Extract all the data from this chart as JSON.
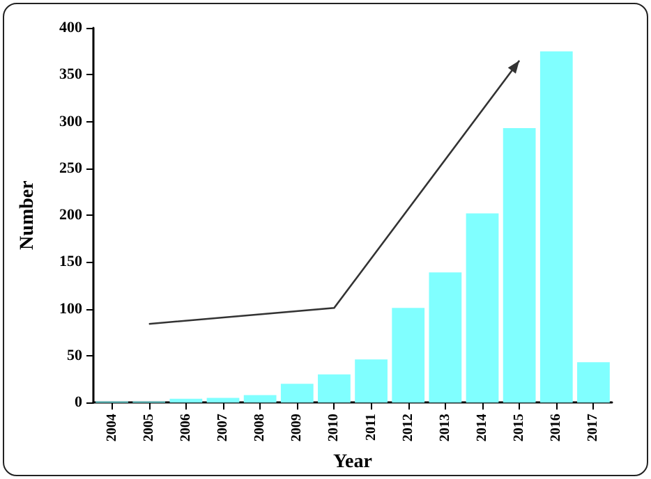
{
  "chart_data": {
    "type": "bar",
    "xlabel": "Year",
    "ylabel": "Number",
    "categories": [
      "2004",
      "2005",
      "2006",
      "2007",
      "2008",
      "2009",
      "2010",
      "2011",
      "2012",
      "2013",
      "2014",
      "2015",
      "2016",
      "2017"
    ],
    "values": [
      1,
      1,
      4,
      5,
      8,
      20,
      30,
      46,
      101,
      139,
      202,
      293,
      375,
      43
    ],
    "color": "#80ffff",
    "ylim": [
      0,
      400
    ],
    "yticks": [
      0,
      50,
      100,
      150,
      200,
      250,
      300,
      350,
      400
    ],
    "grid": false
  }
}
